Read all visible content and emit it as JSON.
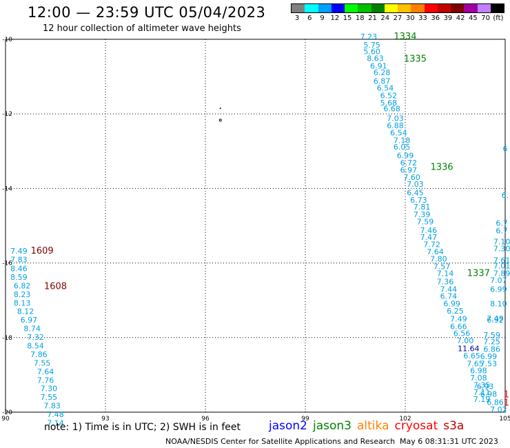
{
  "header": {
    "title": "12:00 — 23:59 UTC 05/04/2023",
    "subtitle": "12 hour collection of altimeter wave heights"
  },
  "scale": {
    "labels": [
      "3",
      "6",
      "9",
      "12",
      "15",
      "18",
      "21",
      "24",
      "27",
      "30",
      "33",
      "36",
      "39",
      "42",
      "45",
      "70",
      "(ft)"
    ],
    "colors": [
      "#808080",
      "#00ffff",
      "#00a0ff",
      "#0000ff",
      "#00ff00",
      "#00c000",
      "#008000",
      "#ffff00",
      "#ffc000",
      "#ff8000",
      "#ff0000",
      "#c00000",
      "#800000",
      "#a000a0",
      "#c080ff",
      "#000000"
    ]
  },
  "chart_data": {
    "type": "map",
    "lon_range": [
      90,
      105
    ],
    "lat_range": [
      -20,
      -10
    ],
    "x_ticks": [
      "90",
      "93",
      "96",
      "99",
      "102",
      "105"
    ],
    "y_ticks": [
      "-10",
      "-12",
      "-14",
      "-16",
      "-18",
      "-20"
    ],
    "grid": true,
    "colors": {
      "jason3_points": "#00a0e0",
      "jason3_pass": "#008000",
      "cryosat_pass": "#800000",
      "jason2": "#0000ff",
      "altika": "#ff8000",
      "cryosat": "#ff0000",
      "s3a": "#c00000"
    },
    "pass_labels": [
      {
        "text": "1334",
        "lon": 102.0,
        "lat": -10.0,
        "sat": "jason3"
      },
      {
        "text": "1335",
        "lon": 102.3,
        "lat": -10.6,
        "sat": "jason3"
      },
      {
        "text": "1336",
        "lon": 103.1,
        "lat": -13.5,
        "sat": "jason3"
      },
      {
        "text": "1337",
        "lon": 104.2,
        "lat": -16.35,
        "sat": "jason3"
      },
      {
        "text": "1609",
        "lon": 91.1,
        "lat": -15.75,
        "sat": "cryosat"
      },
      {
        "text": "1608",
        "lon": 91.5,
        "lat": -16.7,
        "sat": "cryosat"
      }
    ],
    "tracks": [
      {
        "name": "track-a",
        "sat": "jason3",
        "points": [
          {
            "lon": 100.9,
            "lat": -10.0,
            "v": "7.23"
          },
          {
            "lon": 101.0,
            "lat": -10.22,
            "v": "5.75"
          },
          {
            "lon": 101.0,
            "lat": -10.4,
            "v": "5.60"
          },
          {
            "lon": 101.1,
            "lat": -10.58,
            "v": "8.63"
          },
          {
            "lon": 101.2,
            "lat": -10.79,
            "v": "6.91"
          },
          {
            "lon": 101.3,
            "lat": -10.96,
            "v": "6.28"
          },
          {
            "lon": 101.3,
            "lat": -11.19,
            "v": "6.87"
          },
          {
            "lon": 101.4,
            "lat": -11.38,
            "v": "6.54"
          },
          {
            "lon": 101.5,
            "lat": -11.58,
            "v": "6.52"
          },
          {
            "lon": 101.5,
            "lat": -11.77,
            "v": "5.68"
          },
          {
            "lon": 101.6,
            "lat": -11.93,
            "v": "6.68"
          },
          {
            "lon": 101.7,
            "lat": -12.19,
            "v": "7.03"
          },
          {
            "lon": 101.7,
            "lat": -12.38,
            "v": "6.88"
          },
          {
            "lon": 101.8,
            "lat": -12.58,
            "v": "6.54"
          },
          {
            "lon": 101.9,
            "lat": -12.78,
            "v": "7.18"
          },
          {
            "lon": 101.9,
            "lat": -12.96,
            "v": "6.05"
          },
          {
            "lon": 102.0,
            "lat": -13.19,
            "v": "6.99"
          },
          {
            "lon": 102.1,
            "lat": -13.38,
            "v": "6.72"
          },
          {
            "lon": 102.1,
            "lat": -13.58,
            "v": "6.97"
          },
          {
            "lon": 102.2,
            "lat": -13.77,
            "v": "7.60"
          },
          {
            "lon": 102.3,
            "lat": -13.96,
            "v": "7.03"
          },
          {
            "lon": 102.3,
            "lat": -14.19,
            "v": "6.45"
          },
          {
            "lon": 102.4,
            "lat": -14.38,
            "v": "6.73"
          },
          {
            "lon": 102.5,
            "lat": -14.57,
            "v": "7.81"
          },
          {
            "lon": 102.5,
            "lat": -14.77,
            "v": "7.39"
          },
          {
            "lon": 102.6,
            "lat": -14.96,
            "v": "7.59"
          },
          {
            "lon": 102.7,
            "lat": -15.19,
            "v": "7.46"
          },
          {
            "lon": 102.7,
            "lat": -15.38,
            "v": "7.47"
          },
          {
            "lon": 102.8,
            "lat": -15.57,
            "v": "7.72"
          },
          {
            "lon": 102.9,
            "lat": -15.77,
            "v": "7.64"
          },
          {
            "lon": 103.0,
            "lat": -15.96,
            "v": "7.80"
          },
          {
            "lon": 103.1,
            "lat": -16.16,
            "v": "7.57"
          },
          {
            "lon": 103.2,
            "lat": -16.35,
            "v": "7.14"
          },
          {
            "lon": 103.2,
            "lat": -16.57,
            "v": "7.36"
          },
          {
            "lon": 103.3,
            "lat": -16.77,
            "v": "7.44"
          },
          {
            "lon": 103.3,
            "lat": -16.96,
            "v": "6.74"
          },
          {
            "lon": 103.4,
            "lat": -17.16,
            "v": "6.99"
          },
          {
            "lon": 103.5,
            "lat": -17.36,
            "v": "6.25"
          },
          {
            "lon": 103.6,
            "lat": -17.57,
            "v": "7.49"
          },
          {
            "lon": 103.6,
            "lat": -17.77,
            "v": "6.66"
          },
          {
            "lon": 103.7,
            "lat": -17.96,
            "v": "6.56"
          },
          {
            "lon": 103.8,
            "lat": -18.15,
            "v": "7.00"
          },
          {
            "lon": 103.9,
            "lat": -18.36,
            "v": "11.64"
          },
          {
            "lon": 104.0,
            "lat": -18.56,
            "v": "6.65"
          },
          {
            "lon": 104.1,
            "lat": -18.77,
            "v": "7.65"
          },
          {
            "lon": 104.2,
            "lat": -18.96,
            "v": "6.98"
          },
          {
            "lon": 104.2,
            "lat": -19.15,
            "v": "7.08"
          },
          {
            "lon": 104.3,
            "lat": -19.34,
            "v": "7.35"
          },
          {
            "lon": 104.3,
            "lat": -19.54,
            "v": "7.11"
          },
          {
            "lon": 104.3,
            "lat": -19.72,
            "v": "7.19"
          }
        ]
      },
      {
        "name": "track-b",
        "sat": "jason3",
        "points": [
          {
            "lon": 104.9,
            "lat": -16.35,
            "v": "7.89"
          },
          {
            "lon": 104.8,
            "lat": -16.53,
            "v": "7.07"
          },
          {
            "lon": 104.8,
            "lat": -16.77,
            "v": "6.99"
          },
          {
            "lon": 104.8,
            "lat": -17.16,
            "v": "8.10"
          },
          {
            "lon": 104.7,
            "lat": -17.56,
            "v": "7.49"
          },
          {
            "lon": 104.7,
            "lat": -17.6,
            "v": "6.92"
          },
          {
            "lon": 104.6,
            "lat": -18.0,
            "v": "7.59"
          },
          {
            "lon": 104.6,
            "lat": -18.18,
            "v": "7.25"
          },
          {
            "lon": 104.6,
            "lat": -18.38,
            "v": "6.86"
          },
          {
            "lon": 104.5,
            "lat": -18.58,
            "v": "6.99"
          },
          {
            "lon": 104.5,
            "lat": -18.77,
            "v": "7.53"
          },
          {
            "lon": 104.4,
            "lat": -19.38,
            "v": "6.93"
          },
          {
            "lon": 104.5,
            "lat": -19.58,
            "v": "6.98"
          },
          {
            "lon": 104.7,
            "lat": -19.81,
            "v": "6.86"
          },
          {
            "lon": 104.8,
            "lat": -20.0,
            "v": "7.02"
          }
        ]
      },
      {
        "name": "track-c",
        "sat": "jason3",
        "points": [
          {
            "lon": 105.0,
            "lat": -13.0,
            "v": "6"
          },
          {
            "lon": 105.0,
            "lat": -14.25,
            "v": "6."
          },
          {
            "lon": 104.9,
            "lat": -15.0,
            "v": "6.7"
          },
          {
            "lon": 104.9,
            "lat": -15.2,
            "v": "6.7"
          },
          {
            "lon": 104.9,
            "lat": -15.5,
            "v": "7.10"
          },
          {
            "lon": 104.9,
            "lat": -15.68,
            "v": "7.30"
          },
          {
            "lon": 104.9,
            "lat": -16.0,
            "v": "7.61"
          },
          {
            "lon": 104.9,
            "lat": -16.15,
            "v": "7.01"
          }
        ]
      },
      {
        "name": "track-d",
        "sat": "jason3",
        "points": [
          {
            "lon": 90.4,
            "lat": -15.75,
            "v": "7.49"
          },
          {
            "lon": 90.4,
            "lat": -15.98,
            "v": "7.83"
          },
          {
            "lon": 90.4,
            "lat": -16.22,
            "v": "8.46"
          },
          {
            "lon": 90.4,
            "lat": -16.45,
            "v": "8.59"
          },
          {
            "lon": 90.5,
            "lat": -16.68,
            "v": "6.82"
          },
          {
            "lon": 90.5,
            "lat": -16.91,
            "v": "8.23"
          },
          {
            "lon": 90.5,
            "lat": -17.14,
            "v": "8.13"
          },
          {
            "lon": 90.6,
            "lat": -17.37,
            "v": "8.12"
          },
          {
            "lon": 90.7,
            "lat": -17.6,
            "v": "6.97"
          },
          {
            "lon": 90.8,
            "lat": -17.83,
            "v": "8.74"
          },
          {
            "lon": 90.9,
            "lat": -18.06,
            "v": "7.32"
          },
          {
            "lon": 90.9,
            "lat": -18.29,
            "v": "8.54"
          },
          {
            "lon": 91.0,
            "lat": -18.52,
            "v": "7.86"
          },
          {
            "lon": 91.1,
            "lat": -18.75,
            "v": "7.55"
          },
          {
            "lon": 91.2,
            "lat": -18.98,
            "v": "7.64"
          },
          {
            "lon": 91.2,
            "lat": -19.21,
            "v": "7.76"
          },
          {
            "lon": 91.3,
            "lat": -19.44,
            "v": "7.30"
          },
          {
            "lon": 91.3,
            "lat": -19.67,
            "v": "7.55"
          },
          {
            "lon": 91.4,
            "lat": -19.9,
            "v": "7.83"
          },
          {
            "lon": 91.5,
            "lat": -20.13,
            "v": "7.48"
          },
          {
            "lon": 91.5,
            "lat": -20.36,
            "v": "7.14"
          }
        ]
      }
    ]
  },
  "footer": {
    "note": "note: 1) Time is in UTC; 2) SWH is in feet",
    "satellites": [
      {
        "name": "jason2",
        "color": "#0000ff"
      },
      {
        "name": "jason3",
        "color": "#008000"
      },
      {
        "name": "altika",
        "color": "#ff8000"
      },
      {
        "name": "cryosat",
        "color": "#ff0000"
      },
      {
        "name": "s3a",
        "color": "#c00000"
      }
    ],
    "credit": "NOAA/NESDIS Center for Satellite Applications and Research",
    "timestamp": "May  6 08:31:31 UTC 2023"
  }
}
